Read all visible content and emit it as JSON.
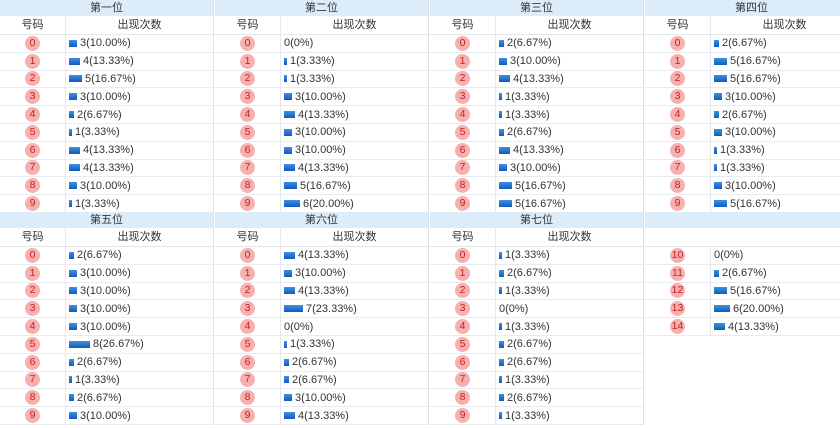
{
  "header_number": "号码",
  "header_count": "出现次数",
  "bar_color": "#1f6fd0",
  "ball_color": "#f6b0b0",
  "ball_text_color": "#c81e1e",
  "blocks": [
    {
      "title": "第一位",
      "rows": [
        {
          "num": "0",
          "count": "3(10.00%)",
          "ratio": 0.1
        },
        {
          "num": "1",
          "count": "4(13.33%)",
          "ratio": 0.1333
        },
        {
          "num": "2",
          "count": "5(16.67%)",
          "ratio": 0.1667
        },
        {
          "num": "3",
          "count": "3(10.00%)",
          "ratio": 0.1
        },
        {
          "num": "4",
          "count": "2(6.67%)",
          "ratio": 0.0667
        },
        {
          "num": "5",
          "count": "1(3.33%)",
          "ratio": 0.0333
        },
        {
          "num": "6",
          "count": "4(13.33%)",
          "ratio": 0.1333
        },
        {
          "num": "7",
          "count": "4(13.33%)",
          "ratio": 0.1333
        },
        {
          "num": "8",
          "count": "3(10.00%)",
          "ratio": 0.1
        },
        {
          "num": "9",
          "count": "1(3.33%)",
          "ratio": 0.0333
        }
      ]
    },
    {
      "title": "第二位",
      "rows": [
        {
          "num": "0",
          "count": "0(0%)",
          "ratio": 0
        },
        {
          "num": "1",
          "count": "1(3.33%)",
          "ratio": 0.0333
        },
        {
          "num": "2",
          "count": "1(3.33%)",
          "ratio": 0.0333
        },
        {
          "num": "3",
          "count": "3(10.00%)",
          "ratio": 0.1
        },
        {
          "num": "4",
          "count": "4(13.33%)",
          "ratio": 0.1333
        },
        {
          "num": "5",
          "count": "3(10.00%)",
          "ratio": 0.1
        },
        {
          "num": "6",
          "count": "3(10.00%)",
          "ratio": 0.1
        },
        {
          "num": "7",
          "count": "4(13.33%)",
          "ratio": 0.1333
        },
        {
          "num": "8",
          "count": "5(16.67%)",
          "ratio": 0.1667
        },
        {
          "num": "9",
          "count": "6(20.00%)",
          "ratio": 0.2
        }
      ]
    },
    {
      "title": "第三位",
      "rows": [
        {
          "num": "0",
          "count": "2(6.67%)",
          "ratio": 0.0667
        },
        {
          "num": "1",
          "count": "3(10.00%)",
          "ratio": 0.1
        },
        {
          "num": "2",
          "count": "4(13.33%)",
          "ratio": 0.1333
        },
        {
          "num": "3",
          "count": "1(3.33%)",
          "ratio": 0.0333
        },
        {
          "num": "4",
          "count": "1(3.33%)",
          "ratio": 0.0333
        },
        {
          "num": "5",
          "count": "2(6.67%)",
          "ratio": 0.0667
        },
        {
          "num": "6",
          "count": "4(13.33%)",
          "ratio": 0.1333
        },
        {
          "num": "7",
          "count": "3(10.00%)",
          "ratio": 0.1
        },
        {
          "num": "8",
          "count": "5(16.67%)",
          "ratio": 0.1667
        },
        {
          "num": "9",
          "count": "5(16.67%)",
          "ratio": 0.1667
        }
      ]
    },
    {
      "title": "第四位",
      "rows": [
        {
          "num": "0",
          "count": "2(6.67%)",
          "ratio": 0.0667
        },
        {
          "num": "1",
          "count": "5(16.67%)",
          "ratio": 0.1667
        },
        {
          "num": "2",
          "count": "5(16.67%)",
          "ratio": 0.1667
        },
        {
          "num": "3",
          "count": "3(10.00%)",
          "ratio": 0.1
        },
        {
          "num": "4",
          "count": "2(6.67%)",
          "ratio": 0.0667
        },
        {
          "num": "5",
          "count": "3(10.00%)",
          "ratio": 0.1
        },
        {
          "num": "6",
          "count": "1(3.33%)",
          "ratio": 0.0333
        },
        {
          "num": "7",
          "count": "1(3.33%)",
          "ratio": 0.0333
        },
        {
          "num": "8",
          "count": "3(10.00%)",
          "ratio": 0.1
        },
        {
          "num": "9",
          "count": "5(16.67%)",
          "ratio": 0.1667
        }
      ]
    },
    {
      "title": "第五位",
      "rows": [
        {
          "num": "0",
          "count": "2(6.67%)",
          "ratio": 0.0667
        },
        {
          "num": "1",
          "count": "3(10.00%)",
          "ratio": 0.1
        },
        {
          "num": "2",
          "count": "3(10.00%)",
          "ratio": 0.1
        },
        {
          "num": "3",
          "count": "3(10.00%)",
          "ratio": 0.1
        },
        {
          "num": "4",
          "count": "3(10.00%)",
          "ratio": 0.1
        },
        {
          "num": "5",
          "count": "8(26.67%)",
          "ratio": 0.2667
        },
        {
          "num": "6",
          "count": "2(6.67%)",
          "ratio": 0.0667
        },
        {
          "num": "7",
          "count": "1(3.33%)",
          "ratio": 0.0333
        },
        {
          "num": "8",
          "count": "2(6.67%)",
          "ratio": 0.0667
        },
        {
          "num": "9",
          "count": "3(10.00%)",
          "ratio": 0.1
        }
      ]
    },
    {
      "title": "第六位",
      "rows": [
        {
          "num": "0",
          "count": "4(13.33%)",
          "ratio": 0.1333
        },
        {
          "num": "1",
          "count": "3(10.00%)",
          "ratio": 0.1
        },
        {
          "num": "2",
          "count": "4(13.33%)",
          "ratio": 0.1333
        },
        {
          "num": "3",
          "count": "7(23.33%)",
          "ratio": 0.2333
        },
        {
          "num": "4",
          "count": "0(0%)",
          "ratio": 0
        },
        {
          "num": "5",
          "count": "1(3.33%)",
          "ratio": 0.0333
        },
        {
          "num": "6",
          "count": "2(6.67%)",
          "ratio": 0.0667
        },
        {
          "num": "7",
          "count": "2(6.67%)",
          "ratio": 0.0667
        },
        {
          "num": "8",
          "count": "3(10.00%)",
          "ratio": 0.1
        },
        {
          "num": "9",
          "count": "4(13.33%)",
          "ratio": 0.1333
        }
      ]
    },
    {
      "title": "第七位",
      "rows": [
        {
          "num": "0",
          "count": "1(3.33%)",
          "ratio": 0.0333
        },
        {
          "num": "1",
          "count": "2(6.67%)",
          "ratio": 0.0667
        },
        {
          "num": "2",
          "count": "1(3.33%)",
          "ratio": 0.0333
        },
        {
          "num": "3",
          "count": "0(0%)",
          "ratio": 0
        },
        {
          "num": "4",
          "count": "1(3.33%)",
          "ratio": 0.0333
        },
        {
          "num": "5",
          "count": "2(6.67%)",
          "ratio": 0.0667
        },
        {
          "num": "6",
          "count": "2(6.67%)",
          "ratio": 0.0667
        },
        {
          "num": "7",
          "count": "1(3.33%)",
          "ratio": 0.0333
        },
        {
          "num": "8",
          "count": "2(6.67%)",
          "ratio": 0.0667
        },
        {
          "num": "9",
          "count": "1(3.33%)",
          "ratio": 0.0333
        }
      ]
    },
    {
      "title": "",
      "rows": [
        {
          "num": "10",
          "count": "0(0%)",
          "ratio": 0
        },
        {
          "num": "11",
          "count": "2(6.67%)",
          "ratio": 0.0667
        },
        {
          "num": "12",
          "count": "5(16.67%)",
          "ratio": 0.1667
        },
        {
          "num": "13",
          "count": "6(20.00%)",
          "ratio": 0.2
        },
        {
          "num": "14",
          "count": "4(13.33%)",
          "ratio": 0.1333
        }
      ]
    }
  ]
}
